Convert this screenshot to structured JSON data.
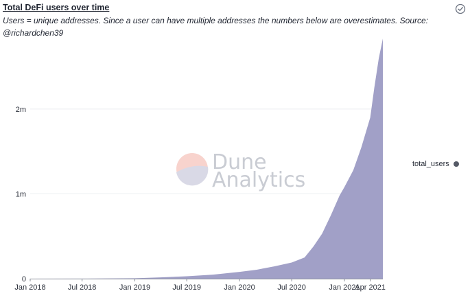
{
  "header": {
    "title": "Total DeFi users over time",
    "subtitle": "Users = unique addresses. Since a user can have multiple addresses the numbers below are overestimates. Source: @richardchen39",
    "status_icon": "check-circle-icon"
  },
  "watermark": {
    "line1": "Dune",
    "line2": "Analytics"
  },
  "colors": {
    "series": "#9c9bc4",
    "grid": "#eceef1",
    "axis": "#8a8f99",
    "legend_dot": "#555a66"
  },
  "chart_data": {
    "type": "area",
    "title": "",
    "xlabel": "",
    "ylabel": "",
    "grid": true,
    "legend_position": "right",
    "ylim": [
      0,
      2800000
    ],
    "xlim": [
      "2018-01-01",
      "2021-05-15"
    ],
    "y_ticks": [
      {
        "value": 0,
        "label": "0"
      },
      {
        "value": 1000000,
        "label": "1m"
      },
      {
        "value": 2000000,
        "label": "2m"
      }
    ],
    "x_ticks": [
      {
        "date": "2018-01-01",
        "label": "Jan 2018"
      },
      {
        "date": "2018-07-01",
        "label": "Jul 2018"
      },
      {
        "date": "2019-01-01",
        "label": "Jan 2019"
      },
      {
        "date": "2019-07-01",
        "label": "Jul 2019"
      },
      {
        "date": "2020-01-01",
        "label": "Jan 2020"
      },
      {
        "date": "2020-07-01",
        "label": "Jul 2020"
      },
      {
        "date": "2021-01-01",
        "label": "Jan 2021"
      },
      {
        "date": "2021-04-01",
        "label": "Apr 2021"
      }
    ],
    "series": [
      {
        "name": "total_users",
        "points": [
          [
            "2018-01-01",
            0
          ],
          [
            "2018-07-01",
            1000
          ],
          [
            "2019-01-01",
            5000
          ],
          [
            "2019-04-01",
            15000
          ],
          [
            "2019-07-01",
            28000
          ],
          [
            "2019-10-01",
            48000
          ],
          [
            "2020-01-01",
            80000
          ],
          [
            "2020-03-01",
            105000
          ],
          [
            "2020-05-01",
            145000
          ],
          [
            "2020-07-01",
            190000
          ],
          [
            "2020-08-15",
            250000
          ],
          [
            "2020-09-15",
            380000
          ],
          [
            "2020-10-15",
            530000
          ],
          [
            "2020-11-15",
            750000
          ],
          [
            "2020-12-15",
            980000
          ],
          [
            "2021-01-01",
            1080000
          ],
          [
            "2021-02-01",
            1280000
          ],
          [
            "2021-03-01",
            1550000
          ],
          [
            "2021-04-01",
            1900000
          ],
          [
            "2021-04-15",
            2250000
          ],
          [
            "2021-05-01",
            2600000
          ],
          [
            "2021-05-15",
            2830000
          ]
        ]
      }
    ]
  }
}
